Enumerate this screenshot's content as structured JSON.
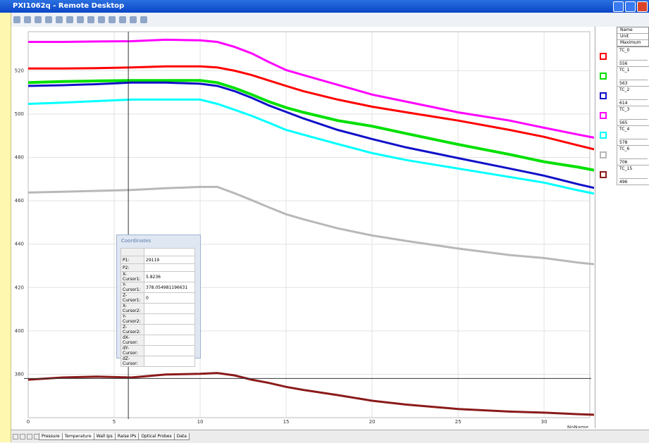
{
  "window": {
    "title": "PXI1062q - Remote Desktop"
  },
  "chart_data": {
    "type": "line",
    "x": [
      0,
      2,
      4,
      6,
      8,
      10,
      11,
      12,
      13,
      14,
      15,
      16,
      18,
      20,
      22,
      25,
      28,
      30,
      32,
      33
    ],
    "series": [
      {
        "name": "TC_0",
        "color": "#ff0000",
        "values": [
          521,
          521,
          521.2,
          521.5,
          522,
          522,
          521.5,
          520,
          518,
          515.5,
          513,
          510.6,
          506.7,
          503.4,
          500.8,
          497,
          492.7,
          489.5,
          485.5,
          483.6
        ]
      },
      {
        "name": "TC_1",
        "color": "#00e000",
        "values": [
          514.5,
          515,
          515.3,
          515.5,
          515.5,
          515.5,
          514.5,
          512,
          509,
          505.7,
          503,
          500.8,
          497,
          494.4,
          491,
          486,
          481.4,
          478,
          475.5,
          474
        ]
      },
      {
        "name": "TC_2",
        "color": "#1010c8",
        "values": [
          513,
          513.3,
          513.8,
          514.5,
          514.5,
          514,
          513,
          510.6,
          507.5,
          504,
          501,
          498,
          492.7,
          488.5,
          484.6,
          479.7,
          474.9,
          471.6,
          467.6,
          465.8
        ]
      },
      {
        "name": "TC_3",
        "color": "#ff00ff",
        "values": [
          533.3,
          533.3,
          533.5,
          533.6,
          534.3,
          534,
          533.3,
          531,
          528,
          524,
          520.3,
          518,
          513.5,
          509,
          505.7,
          500.8,
          497,
          493.7,
          490.5,
          489
        ]
      },
      {
        "name": "TC_4",
        "color": "#00ffff",
        "values": [
          504.7,
          505.3,
          506,
          506.7,
          506.7,
          506.7,
          504.7,
          502,
          499.2,
          496,
          492.7,
          490.5,
          486.2,
          482,
          478.8,
          474.9,
          471,
          468.4,
          464.8,
          463.2
        ]
      },
      {
        "name": "TC_6",
        "color": "#b8b8b8",
        "values": [
          463.8,
          464.2,
          464.6,
          465,
          465.8,
          466.4,
          466.4,
          463.5,
          460.3,
          457,
          453.8,
          451.5,
          447.3,
          444,
          441.5,
          438,
          435,
          433.6,
          431.5,
          430.7
        ]
      },
      {
        "name": "TC_15",
        "color": "#8b1a1a",
        "values": [
          377.5,
          378.5,
          378.9,
          378.5,
          379.9,
          380.2,
          380.6,
          379.5,
          377.5,
          376,
          374.2,
          372.8,
          370.4,
          367.8,
          366,
          364,
          362.8,
          362.3,
          361.6,
          361.3
        ]
      }
    ],
    "xlim": [
      0,
      32.66
    ],
    "ylim": [
      360,
      538
    ],
    "xticks": [
      0,
      5,
      10,
      15,
      20,
      25,
      30
    ],
    "yticks": [
      380,
      400,
      420,
      440,
      460,
      480,
      500,
      520
    ],
    "grid": true,
    "x_label": "NoName"
  },
  "legend": {
    "header": [
      "Name",
      "Unit",
      "Maximum"
    ],
    "maximum": [
      556,
      563,
      614,
      565,
      578,
      706,
      496
    ]
  },
  "coordinates": {
    "title": "Coordinates",
    "rows": [
      [
        "P1:",
        29119
      ],
      [
        "P2:",
        ""
      ],
      [
        "X-Cursor1:",
        5.8236
      ],
      [
        "Y-Cursor1:",
        378.054981196631
      ],
      [
        "Z-Cursor1:",
        0
      ],
      [
        "X-Cursor2:",
        ""
      ],
      [
        "Y-Cursor2:",
        ""
      ],
      [
        "Z-Cursor2:",
        ""
      ],
      [
        "dX-Cursor:",
        ""
      ],
      [
        "dY-Cursor:",
        ""
      ],
      [
        "dZ-Cursor:",
        ""
      ]
    ]
  },
  "tabs": [
    "Pressure",
    "Temperature",
    "Wall Ips",
    "Raise IPs",
    "Optical Probes",
    "Data"
  ]
}
